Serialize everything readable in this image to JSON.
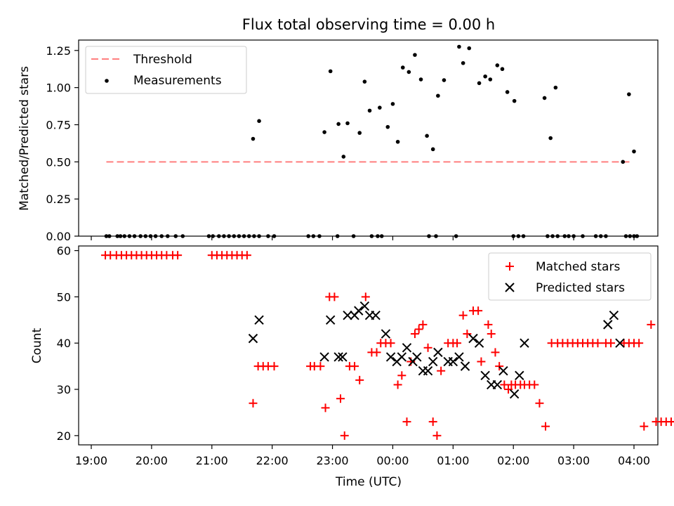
{
  "title": "Flux total observing time = 0.00 h",
  "top": {
    "ylabel": "Matched/Predicted stars",
    "ylim": [
      0,
      1.32
    ],
    "yticks": [
      "0.00",
      "0.25",
      "0.50",
      "0.75",
      "1.00",
      "1.25"
    ],
    "legend": {
      "position": "upper left",
      "threshold_label": "Threshold",
      "measurements_label": "Measurements"
    },
    "threshold": {
      "value": 0.5,
      "x_start": "19:15",
      "x_end": "03:58",
      "color": "#ff7f7f"
    }
  },
  "bottom": {
    "ylabel": "Count",
    "ylim": [
      18,
      61
    ],
    "yticks": [
      "20",
      "30",
      "40",
      "50",
      "60"
    ],
    "legend": {
      "position": "upper right",
      "matched_label": "Matched stars",
      "predicted_label": "Predicted stars"
    },
    "matched_color": "#ff0000",
    "predicted_color": "#000000"
  },
  "xaxis": {
    "label": "Time (UTC)",
    "ticks": [
      "19:00",
      "20:00",
      "21:00",
      "22:00",
      "23:00",
      "00:00",
      "01:00",
      "02:00",
      "03:00",
      "04:00"
    ]
  },
  "chart_data": [
    {
      "type": "scatter",
      "title": "Flux total observing time = 0.00 h",
      "ylabel": "Matched/Predicted stars",
      "series": [
        {
          "name": "Measurements",
          "points": [
            [
              "19:15",
              0
            ],
            [
              "19:18",
              0
            ],
            [
              "19:26",
              0
            ],
            [
              "19:29",
              0
            ],
            [
              "19:33",
              0
            ],
            [
              "19:38",
              0
            ],
            [
              "19:43",
              0
            ],
            [
              "19:49",
              0
            ],
            [
              "19:54",
              0
            ],
            [
              "19:59",
              0
            ],
            [
              "20:04",
              0
            ],
            [
              "20:10",
              0
            ],
            [
              "20:16",
              0
            ],
            [
              "20:24",
              0
            ],
            [
              "20:31",
              0
            ],
            [
              "20:57",
              0
            ],
            [
              "21:01",
              0
            ],
            [
              "21:07",
              0
            ],
            [
              "21:12",
              0
            ],
            [
              "21:17",
              0
            ],
            [
              "21:22",
              0
            ],
            [
              "21:27",
              0
            ],
            [
              "21:32",
              0
            ],
            [
              "21:37",
              0
            ],
            [
              "21:42",
              0
            ],
            [
              "21:47",
              0
            ],
            [
              "21:56",
              0
            ],
            [
              "22:02",
              0
            ],
            [
              "22:36",
              0
            ],
            [
              "22:41",
              0
            ],
            [
              "22:47",
              0
            ],
            [
              "23:05",
              0
            ],
            [
              "23:21",
              0
            ],
            [
              "23:39",
              0
            ],
            [
              "23:45",
              0
            ],
            [
              "23:49",
              0
            ],
            [
              "00:36",
              0
            ],
            [
              "00:43",
              0
            ],
            [
              "01:03",
              0
            ],
            [
              "02:00",
              0
            ],
            [
              "02:05",
              0
            ],
            [
              "02:10",
              0
            ],
            [
              "02:34",
              0
            ],
            [
              "02:39",
              0
            ],
            [
              "02:44",
              0
            ],
            [
              "02:51",
              0
            ],
            [
              "02:55",
              0
            ],
            [
              "03:00",
              0
            ],
            [
              "03:09",
              0
            ],
            [
              "03:22",
              0
            ],
            [
              "03:27",
              0
            ],
            [
              "03:32",
              0
            ],
            [
              "03:52",
              0
            ],
            [
              "03:56",
              0
            ],
            [
              "04:00",
              0
            ],
            [
              "04:03",
              0
            ],
            [
              "21:41",
              0.655
            ],
            [
              "21:47",
              0.775
            ],
            [
              "22:52",
              0.7
            ],
            [
              "22:58",
              1.11
            ],
            [
              "23:06",
              0.755
            ],
            [
              "23:11",
              0.535
            ],
            [
              "23:15",
              0.76
            ],
            [
              "23:27",
              0.695
            ],
            [
              "23:32",
              1.04
            ],
            [
              "23:37",
              0.845
            ],
            [
              "23:47",
              0.865
            ],
            [
              "23:55",
              0.735
            ],
            [
              "24:00",
              0.89
            ],
            [
              "24:05",
              0.635
            ],
            [
              "24:10",
              1.135
            ],
            [
              "24:16",
              1.105
            ],
            [
              "24:22",
              1.22
            ],
            [
              "24:28",
              1.055
            ],
            [
              "24:34",
              0.675
            ],
            [
              "24:40",
              0.585
            ],
            [
              "24:45",
              0.945
            ],
            [
              "24:51",
              1.05
            ],
            [
              "25:06",
              1.275
            ],
            [
              "25:10",
              1.165
            ],
            [
              "25:16",
              1.265
            ],
            [
              "25:26",
              1.03
            ],
            [
              "25:32",
              1.075
            ],
            [
              "25:37",
              1.055
            ],
            [
              "25:44",
              1.15
            ],
            [
              "25:49",
              1.125
            ],
            [
              "25:54",
              0.97
            ],
            [
              "26:01",
              0.91
            ],
            [
              "26:31",
              0.93
            ],
            [
              "26:37",
              0.66
            ],
            [
              "26:42",
              1.0
            ],
            [
              "27:49",
              0.5
            ],
            [
              "27:55",
              0.955
            ],
            [
              "28:00",
              0.57
            ]
          ]
        }
      ]
    },
    {
      "type": "scatter",
      "xlabel": "Time (UTC)",
      "ylabel": "Count",
      "series": [
        {
          "name": "Matched stars",
          "points": [
            [
              "19:14",
              59
            ],
            [
              "19:19",
              59
            ],
            [
              "19:25",
              59
            ],
            [
              "19:30",
              59
            ],
            [
              "19:35",
              59
            ],
            [
              "19:40",
              59
            ],
            [
              "19:45",
              59
            ],
            [
              "19:50",
              59
            ],
            [
              "19:55",
              59
            ],
            [
              "20:00",
              59
            ],
            [
              "20:05",
              59
            ],
            [
              "20:10",
              59
            ],
            [
              "20:15",
              59
            ],
            [
              "20:21",
              59
            ],
            [
              "20:26",
              59
            ],
            [
              "21:00",
              59
            ],
            [
              "21:05",
              59
            ],
            [
              "21:10",
              59
            ],
            [
              "21:15",
              59
            ],
            [
              "21:20",
              59
            ],
            [
              "21:25",
              59
            ],
            [
              "21:30",
              59
            ],
            [
              "21:35",
              59
            ],
            [
              "21:41",
              27
            ],
            [
              "21:46",
              35
            ],
            [
              "21:51",
              35
            ],
            [
              "21:56",
              35
            ],
            [
              "22:02",
              35
            ],
            [
              "22:38",
              35
            ],
            [
              "22:42",
              35
            ],
            [
              "22:48",
              35
            ],
            [
              "22:53",
              26
            ],
            [
              "22:57",
              50
            ],
            [
              "23:02",
              50
            ],
            [
              "23:08",
              28
            ],
            [
              "23:12",
              20
            ],
            [
              "23:17",
              35
            ],
            [
              "23:22",
              35
            ],
            [
              "23:27",
              32
            ],
            [
              "23:33",
              50
            ],
            [
              "23:39",
              38
            ],
            [
              "23:44",
              38
            ],
            [
              "23:48",
              40
            ],
            [
              "23:53",
              40
            ],
            [
              "23:58",
              40
            ],
            [
              "24:05",
              31
            ],
            [
              "24:09",
              33
            ],
            [
              "24:14",
              23
            ],
            [
              "24:18",
              36
            ],
            [
              "24:22",
              42
            ],
            [
              "24:26",
              43
            ],
            [
              "24:30",
              44
            ],
            [
              "24:35",
              39
            ],
            [
              "24:40",
              23
            ],
            [
              "24:44",
              20
            ],
            [
              "24:48",
              34
            ],
            [
              "24:55",
              40
            ],
            [
              "25:00",
              40
            ],
            [
              "25:04",
              40
            ],
            [
              "25:10",
              46
            ],
            [
              "25:14",
              42
            ],
            [
              "25:20",
              47
            ],
            [
              "25:25",
              47
            ],
            [
              "25:28",
              36
            ],
            [
              "25:35",
              44
            ],
            [
              "25:38",
              42
            ],
            [
              "25:42",
              38
            ],
            [
              "25:46",
              35
            ],
            [
              "25:51",
              31
            ],
            [
              "25:55",
              30
            ],
            [
              "25:58",
              31
            ],
            [
              "26:02",
              31
            ],
            [
              "26:07",
              31
            ],
            [
              "26:11",
              31
            ],
            [
              "26:16",
              31
            ],
            [
              "26:21",
              31
            ],
            [
              "26:26",
              27
            ],
            [
              "26:32",
              22
            ],
            [
              "26:38",
              40
            ],
            [
              "26:44",
              40
            ],
            [
              "26:49",
              40
            ],
            [
              "26:54",
              40
            ],
            [
              "26:59",
              40
            ],
            [
              "27:04",
              40
            ],
            [
              "27:09",
              40
            ],
            [
              "27:14",
              40
            ],
            [
              "27:19",
              40
            ],
            [
              "27:24",
              40
            ],
            [
              "27:32",
              40
            ],
            [
              "27:37",
              40
            ],
            [
              "27:50",
              40
            ],
            [
              "27:55",
              40
            ],
            [
              "28:00",
              40
            ],
            [
              "28:05",
              40
            ],
            [
              "28:10",
              22
            ],
            [
              "28:17",
              44
            ],
            [
              "28:22",
              23
            ],
            [
              "28:27",
              23
            ],
            [
              "28:32",
              23
            ],
            [
              "28:37",
              23
            ],
            [
              "28:42",
              23
            ],
            [
              "28:47",
              23
            ]
          ]
        },
        {
          "name": "Predicted stars",
          "points": [
            [
              "21:41",
              41
            ],
            [
              "21:47",
              45
            ],
            [
              "22:52",
              37
            ],
            [
              "22:58",
              45
            ],
            [
              "23:06",
              37
            ],
            [
              "23:10",
              37
            ],
            [
              "23:15",
              46
            ],
            [
              "23:22",
              46
            ],
            [
              "23:26",
              47
            ],
            [
              "23:32",
              48
            ],
            [
              "23:37",
              46
            ],
            [
              "23:43",
              46
            ],
            [
              "23:53",
              42
            ],
            [
              "23:58",
              37
            ],
            [
              "24:04",
              36
            ],
            [
              "24:09",
              37
            ],
            [
              "24:14",
              39
            ],
            [
              "24:20",
              36
            ],
            [
              "24:24",
              37
            ],
            [
              "24:30",
              34
            ],
            [
              "24:35",
              34
            ],
            [
              "24:40",
              36
            ],
            [
              "24:45",
              38
            ],
            [
              "24:55",
              36
            ],
            [
              "25:00",
              36
            ],
            [
              "25:06",
              37
            ],
            [
              "25:12",
              35
            ],
            [
              "25:20",
              41
            ],
            [
              "25:26",
              40
            ],
            [
              "25:32",
              33
            ],
            [
              "25:38",
              31
            ],
            [
              "25:44",
              31
            ],
            [
              "25:50",
              34
            ],
            [
              "26:01",
              29
            ],
            [
              "26:06",
              33
            ],
            [
              "26:11",
              40
            ],
            [
              "27:34",
              44
            ],
            [
              "27:40",
              46
            ],
            [
              "27:46",
              40
            ]
          ]
        }
      ]
    }
  ]
}
